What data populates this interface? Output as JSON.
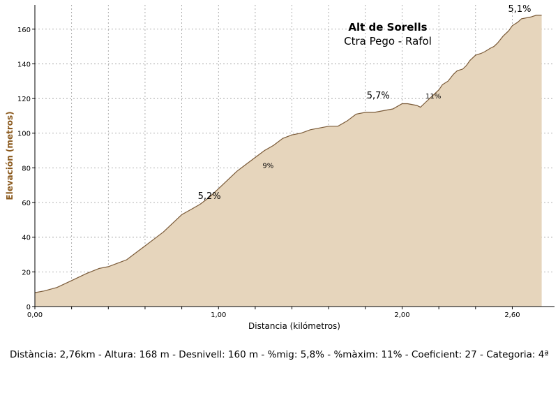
{
  "chart_data": {
    "type": "area",
    "title": "Alt de Sorells",
    "subtitle": "Ctra Pego - Rafol",
    "xlabel": "Distancia (kilómetros)",
    "ylabel": "Elevación (metros)",
    "xlim": [
      0,
      2.83
    ],
    "ylim": [
      0,
      174
    ],
    "x_ticks": [
      0,
      0.2,
      0.4,
      0.6,
      0.8,
      1.0,
      1.2,
      1.4,
      1.6,
      1.8,
      2.0,
      2.2,
      2.4,
      2.6
    ],
    "x_tick_labels": [
      "0,00",
      "1,00",
      "2,00",
      "2,60"
    ],
    "x_tick_label_values": [
      0,
      1.0,
      2.0,
      2.6
    ],
    "y_ticks": [
      0,
      20,
      40,
      60,
      80,
      100,
      120,
      140,
      160
    ],
    "y_tick_labels": [
      "0",
      "20",
      "40",
      "60",
      "80",
      "100",
      "120",
      "140",
      "160"
    ],
    "grid": true,
    "fill_color": "#e6d5bc",
    "line_color": "#7a5a38",
    "ylabel_color": "#8b5a1e",
    "x": [
      0,
      0.05,
      0.12,
      0.2,
      0.28,
      0.35,
      0.4,
      0.45,
      0.5,
      0.55,
      0.6,
      0.65,
      0.7,
      0.75,
      0.8,
      0.85,
      0.9,
      0.95,
      1.0,
      1.05,
      1.1,
      1.15,
      1.2,
      1.25,
      1.3,
      1.35,
      1.4,
      1.45,
      1.5,
      1.55,
      1.6,
      1.65,
      1.7,
      1.75,
      1.8,
      1.85,
      1.9,
      1.95,
      2.0,
      2.03,
      2.08,
      2.1,
      2.13,
      2.16,
      2.2,
      2.22,
      2.25,
      2.28,
      2.3,
      2.33,
      2.35,
      2.37,
      2.4,
      2.43,
      2.45,
      2.48,
      2.5,
      2.52,
      2.55,
      2.58,
      2.6,
      2.63,
      2.65,
      2.7,
      2.73,
      2.76
    ],
    "y": [
      8,
      9,
      11,
      15,
      19,
      22,
      23,
      25,
      27,
      31,
      35,
      39,
      43,
      48,
      53,
      56,
      59,
      63,
      68,
      73,
      78,
      82,
      86,
      90,
      93,
      97,
      99,
      100,
      102,
      103,
      104,
      104,
      107,
      111,
      112,
      112,
      113,
      114,
      117,
      117,
      116,
      115,
      118,
      121,
      125,
      128,
      130,
      134,
      136,
      137,
      139,
      142,
      145,
      146,
      147,
      149,
      150,
      152,
      156,
      159,
      162,
      164,
      166,
      167,
      168,
      168
    ],
    "annotations": [
      {
        "text": "5,2%",
        "x": 0.95,
        "y": 62,
        "size": "big"
      },
      {
        "text": "9%",
        "x": 1.27,
        "y": 80,
        "size": "small"
      },
      {
        "text": "5,7%",
        "x": 1.87,
        "y": 120,
        "size": "big"
      },
      {
        "text": "11%",
        "x": 2.17,
        "y": 120,
        "size": "small"
      },
      {
        "text": "5,1%",
        "x": 2.64,
        "y": 170,
        "size": "big"
      }
    ]
  },
  "summary": "Distància: 2,76km - Altura: 168 m - Desnivell: 160 m - %mig: 5,8% - %màxim: 11% - Coeficient: 27 - Categoria: 4ª"
}
